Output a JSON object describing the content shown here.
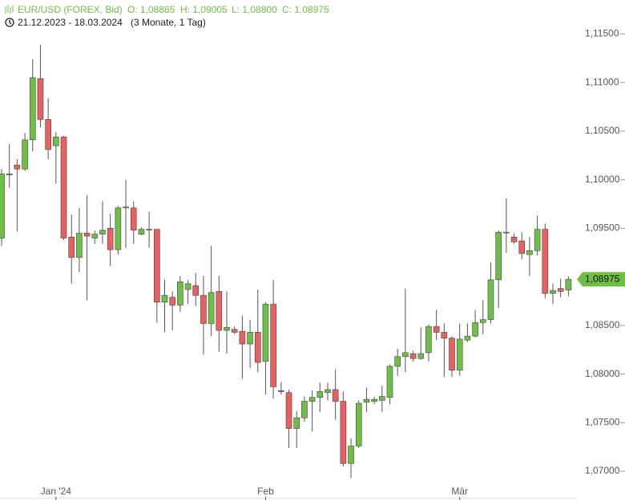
{
  "header": {
    "instrument": "EUR/USD (FOREX, Bid)",
    "open": "O: 1,08865",
    "high": "H: 1,09005",
    "low": "L: 1,08800",
    "close": "C: 1,08975",
    "range": "21.12.2023 - 18.03.2024",
    "period": "(3 Monate, 1 Tag)"
  },
  "chart_data": {
    "type": "candlestick",
    "categories": [
      null,
      null,
      null,
      null,
      null,
      null,
      null,
      "Jan '24",
      null,
      null,
      null,
      null,
      null,
      null,
      null,
      null,
      null,
      null,
      null,
      null,
      null,
      null,
      null,
      null,
      null,
      null,
      null,
      null,
      null,
      null,
      null,
      null,
      null,
      null,
      "Feb",
      null,
      null,
      null,
      null,
      null,
      null,
      null,
      null,
      null,
      null,
      null,
      null,
      null,
      null,
      null,
      null,
      null,
      null,
      null,
      null,
      null,
      null,
      null,
      null,
      "Mär",
      null,
      null,
      null,
      null,
      null,
      null,
      null,
      null,
      null,
      null,
      null,
      null,
      null,
      null
    ],
    "open": [
      1.094,
      1.1005,
      1.1015,
      1.1011,
      1.1041,
      1.1104,
      1.1062,
      1.1035,
      1.1044,
      1.0941,
      1.092,
      1.0945,
      1.094,
      1.0944,
      1.095,
      1.0928,
      1.0971,
      1.0971,
      1.0944,
      1.0949,
      1.0949,
      1.0874,
      1.0879,
      1.0871,
      1.0887,
      1.0891,
      1.0881,
      1.0852,
      1.0885,
      1.0845,
      1.0846,
      1.0844,
      1.0831,
      1.0843,
      1.0813,
      1.0872,
      1.0783,
      1.0781,
      1.0744,
      1.0755,
      1.0772,
      1.0776,
      1.0781,
      1.0784,
      1.0772,
      1.0708,
      1.0726,
      1.0771,
      1.0772,
      1.0773,
      1.0776,
      1.0808,
      1.0818,
      1.0821,
      1.0816,
      1.0822,
      1.0849,
      1.0843,
      1.0837,
      1.0804,
      1.0835,
      1.0839,
      1.0853,
      1.0856,
      1.0897,
      1.0946,
      1.0941,
      1.0937,
      1.0923,
      1.0927,
      1.0949,
      1.0883,
      1.0888,
      1.08865
    ],
    "high": [
      1.1011,
      1.1037,
      1.1021,
      1.1048,
      1.1124,
      1.1139,
      1.1084,
      1.1049,
      1.1045,
      1.0964,
      1.0971,
      1.0984,
      1.0948,
      1.0978,
      1.0965,
      1.0973,
      1.1,
      1.0978,
      1.0951,
      1.0967,
      1.0949,
      1.0897,
      1.0885,
      1.0901,
      1.0897,
      1.0904,
      1.0901,
      1.0932,
      1.0901,
      1.0885,
      1.0849,
      1.086,
      1.0856,
      1.0887,
      1.0874,
      1.0897,
      1.0792,
      1.0784,
      1.0762,
      1.0777,
      1.0783,
      1.0791,
      1.0791,
      1.0805,
      1.0782,
      1.0734,
      1.0773,
      1.0786,
      1.0777,
      1.0788,
      1.081,
      1.0826,
      1.0888,
      1.0824,
      1.0848,
      1.0851,
      1.0866,
      1.0852,
      1.0839,
      1.0852,
      1.0852,
      1.0866,
      1.0876,
      1.0915,
      1.0948,
      1.0981,
      1.0945,
      1.0946,
      1.0941,
      1.0963,
      1.0955,
      1.0893,
      1.0898,
      1.09005
    ],
    "low": [
      1.0932,
      1.0992,
      1.0947,
      1.1009,
      1.1029,
      1.1054,
      1.1021,
      1.0996,
      1.0938,
      1.0893,
      1.0905,
      1.0876,
      1.0934,
      1.0934,
      1.0911,
      1.0923,
      1.093,
      1.0934,
      1.0943,
      1.093,
      1.0853,
      1.0843,
      1.0845,
      1.0864,
      1.0872,
      1.087,
      1.082,
      1.0839,
      1.0823,
      1.0821,
      1.0841,
      1.0795,
      1.0806,
      1.0802,
      1.0779,
      1.0775,
      1.0779,
      1.0724,
      1.0724,
      1.0751,
      1.0741,
      1.0761,
      1.0773,
      1.0753,
      1.0705,
      1.0693,
      1.0724,
      1.0761,
      1.0769,
      1.0761,
      1.0769,
      1.0798,
      1.0802,
      1.0813,
      1.0815,
      1.0813,
      1.0835,
      1.0797,
      1.0797,
      1.0798,
      1.0833,
      1.0838,
      1.0841,
      1.0852,
      1.0868,
      1.0925,
      1.0934,
      1.0918,
      1.0901,
      1.0922,
      1.0878,
      1.0872,
      1.0879,
      1.088
    ],
    "close": [
      1.1006,
      1.1006,
      1.1011,
      1.1041,
      1.1105,
      1.1062,
      1.1031,
      1.1044,
      1.094,
      1.092,
      1.0945,
      1.0942,
      1.0944,
      1.0948,
      1.0928,
      1.0971,
      1.0972,
      1.0948,
      1.0949,
      1.0949,
      1.0874,
      1.0881,
      1.0871,
      1.0895,
      1.0893,
      1.0881,
      1.0852,
      1.0884,
      1.0845,
      1.0848,
      1.0843,
      1.0831,
      1.0843,
      1.0812,
      1.0872,
      1.0787,
      1.0782,
      1.0744,
      1.0755,
      1.0772,
      1.0776,
      1.0782,
      1.0784,
      1.0772,
      1.0708,
      1.0726,
      1.077,
      1.0774,
      1.0774,
      1.0777,
      1.0808,
      1.0818,
      1.0822,
      1.0816,
      1.0821,
      1.0849,
      1.0843,
      1.0837,
      1.0804,
      1.0836,
      1.0839,
      1.0853,
      1.0856,
      1.0897,
      1.0946,
      1.0946,
      1.0936,
      1.0924,
      1.0927,
      1.0949,
      1.0883,
      1.0886,
      1.0885,
      1.08975
    ],
    "up_color": "#6fbf46",
    "down_color": "#e8605f",
    "ylim": [
      1.0691,
      1.1152
    ],
    "yticks": [
      {
        "value": 1.07,
        "label": "1,07000"
      },
      {
        "value": 1.075,
        "label": "1,07500"
      },
      {
        "value": 1.08,
        "label": "1,08000"
      },
      {
        "value": 1.085,
        "label": "1,08500"
      },
      {
        "value": 1.09,
        "label": "1,09000"
      },
      {
        "value": 1.095,
        "label": "1,09500"
      },
      {
        "value": 1.1,
        "label": "1,10000"
      },
      {
        "value": 1.105,
        "label": "1,10500"
      },
      {
        "value": 1.11,
        "label": "1,11000"
      },
      {
        "value": 1.115,
        "label": "1,11500"
      }
    ],
    "last_price": {
      "value": 1.08975,
      "label": "1,08975"
    }
  }
}
